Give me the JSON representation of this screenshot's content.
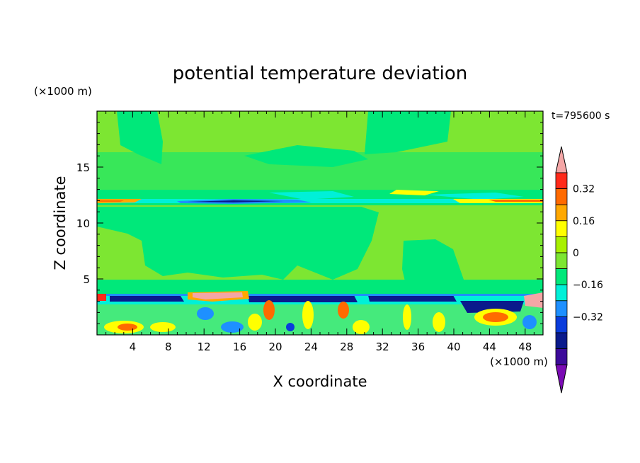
{
  "chart_data": {
    "type": "heatmap",
    "title": "potential temperature deviation",
    "xlabel": "X coordinate",
    "ylabel": "Z coordinate",
    "x_unit": "(×1000 m)",
    "y_unit": "(×1000 m)",
    "time_label": "t=795600 s",
    "xlim": [
      0,
      50
    ],
    "ylim": [
      0,
      20
    ],
    "x_ticks": [
      "4",
      "8",
      "12",
      "16",
      "20",
      "24",
      "28",
      "32",
      "36",
      "40",
      "44",
      "48"
    ],
    "y_ticks": [
      "5",
      "10",
      "15"
    ],
    "colorbar": {
      "labels": [
        "0.32",
        "0.16",
        "0",
        "−0.16",
        "−0.32"
      ],
      "colors": [
        "#f4a6a6",
        "#ff2a1a",
        "#ff6a00",
        "#ffa800",
        "#ffff00",
        "#a8f000",
        "#7de632",
        "#00e87a",
        "#00f0d8",
        "#1e90ff",
        "#0a3cdc",
        "#0a1a8c",
        "#3c0a9a",
        "#7a0ab4"
      ]
    },
    "fields": {
      "background": "#7de632",
      "near_zero_negative": "#00e87a"
    }
  }
}
